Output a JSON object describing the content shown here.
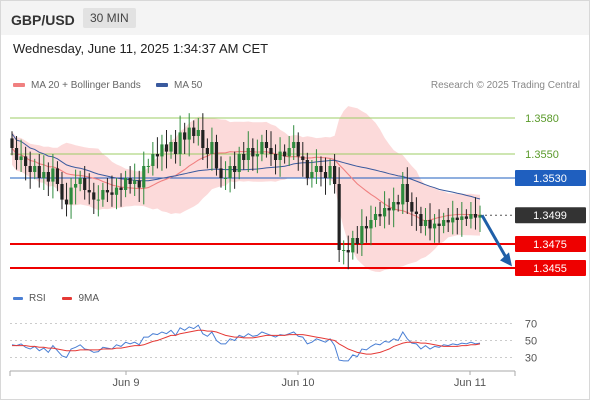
{
  "header": {
    "pair": "GBP/USD",
    "timeframe": "30 MIN"
  },
  "datetime": "Wednesday, June 11, 2025 1:34:37 AM CET",
  "legend": {
    "ma20": "MA 20 + Bollinger Bands",
    "ma50": "MA 50",
    "credit": "Research © 2025 Trading Central",
    "rsi": "RSI",
    "rsi_ma": "9MA"
  },
  "colors": {
    "ma20": "#f08080",
    "band_fill": "#fbd4d4",
    "ma50": "#3a5a9e",
    "bull": "#2e8b3d",
    "bear": "#222222",
    "green_level": "#9ccc65",
    "support": "#ee0000",
    "current": "#333333",
    "resistance_line": "#1f5fbf",
    "arrow": "#1f5fa8",
    "rsi": "#4a7fd4",
    "rsi_ma": "#e53935"
  },
  "chart_data": [
    {
      "type": "candlestick",
      "title": "GBP/USD",
      "ylim": [
        1.3445,
        1.3595
      ],
      "x_ticks": [
        "Jun 9",
        "Jun 10",
        "Jun 11"
      ],
      "levels": [
        {
          "value": 1.358,
          "label": "1.3580",
          "kind": "resistance-light"
        },
        {
          "value": 1.355,
          "label": "1.3550",
          "kind": "resistance-light"
        },
        {
          "value": 1.353,
          "label": "1.3530",
          "kind": "pivot"
        },
        {
          "value": 1.3499,
          "label": "1.3499",
          "kind": "last-price"
        },
        {
          "value": 1.3475,
          "label": "1.3475",
          "kind": "support"
        },
        {
          "value": 1.3455,
          "label": "1.3455",
          "kind": "support"
        }
      ],
      "close": [
        1.3555,
        1.3545,
        1.3548,
        1.354,
        1.3535,
        1.354,
        1.353,
        1.3535,
        1.3527,
        1.3538,
        1.3525,
        1.3512,
        1.3508,
        1.3522,
        1.3525,
        1.353,
        1.352,
        1.3518,
        1.3512,
        1.3512,
        1.352,
        1.3518,
        1.3516,
        1.3522,
        1.352,
        1.353,
        1.3525,
        1.3528,
        1.3522,
        1.354,
        1.354,
        1.355,
        1.3548,
        1.3558,
        1.3552,
        1.356,
        1.355,
        1.3568,
        1.3562,
        1.3572,
        1.3565,
        1.357,
        1.3555,
        1.355,
        1.356,
        1.3538,
        1.353,
        1.353,
        1.354,
        1.3535,
        1.355,
        1.3545,
        1.3555,
        1.3548,
        1.355,
        1.356,
        1.3555,
        1.355,
        1.3545,
        1.3552,
        1.3548,
        1.3555,
        1.356,
        1.3548,
        1.3545,
        1.353,
        1.3535,
        1.354,
        1.3535,
        1.353,
        1.354,
        1.3525,
        1.347,
        1.347,
        1.3468,
        1.348,
        1.3475,
        1.349,
        1.3488,
        1.3495,
        1.35,
        1.3498,
        1.3505,
        1.3503,
        1.351,
        1.3508,
        1.3525,
        1.351,
        1.3502,
        1.35,
        1.349,
        1.3495,
        1.3488,
        1.3492,
        1.349,
        1.3495,
        1.3493,
        1.3497,
        1.3495,
        1.3498,
        1.3496,
        1.35,
        1.3497,
        1.3499
      ],
      "series": [
        {
          "name": "MA 20 + Bollinger Bands",
          "values_note": "derived"
        },
        {
          "name": "MA 50",
          "values_note": "derived"
        }
      ]
    },
    {
      "type": "line",
      "title": "RSI",
      "ylim": [
        20,
        80
      ],
      "y_ticks": [
        30,
        50,
        70
      ],
      "series": [
        {
          "name": "RSI",
          "values": [
            45,
            44,
            46,
            42,
            40,
            43,
            38,
            41,
            36,
            44,
            38,
            32,
            30,
            40,
            42,
            45,
            40,
            39,
            36,
            37,
            42,
            41,
            40,
            45,
            43,
            48,
            46,
            48,
            45,
            54,
            54,
            58,
            57,
            60,
            58,
            62,
            56,
            65,
            62,
            66,
            64,
            68,
            58,
            55,
            60,
            50,
            46,
            46,
            52,
            50,
            56,
            54,
            58,
            55,
            56,
            60,
            58,
            56,
            54,
            57,
            56,
            58,
            60,
            55,
            54,
            46,
            48,
            52,
            50,
            48,
            52,
            44,
            27,
            26,
            26,
            33,
            31,
            40,
            39,
            43,
            46,
            45,
            49,
            48,
            52,
            50,
            60,
            52,
            47,
            46,
            40,
            44,
            40,
            43,
            42,
            45,
            44,
            46,
            45,
            47,
            46,
            48,
            46,
            47
          ]
        },
        {
          "name": "9MA",
          "values": [
            44,
            44,
            44,
            44,
            43,
            43,
            42,
            42,
            41,
            41,
            40,
            39,
            38,
            38,
            38,
            39,
            39,
            39,
            39,
            39,
            40,
            40,
            40,
            41,
            41,
            42,
            43,
            44,
            44,
            45,
            47,
            49,
            50,
            52,
            54,
            56,
            56,
            58,
            59,
            60,
            61,
            62,
            62,
            61,
            61,
            60,
            58,
            56,
            55,
            54,
            54,
            53,
            53,
            53,
            54,
            55,
            56,
            56,
            56,
            56,
            56,
            57,
            57,
            57,
            57,
            56,
            55,
            54,
            53,
            52,
            51,
            50,
            46,
            43,
            40,
            38,
            36,
            35,
            34,
            34,
            35,
            36,
            38,
            40,
            43,
            45,
            47,
            48,
            48,
            48,
            47,
            47,
            46,
            45,
            44,
            43,
            43,
            43,
            43,
            44,
            44,
            45,
            45,
            46
          ]
        }
      ]
    }
  ]
}
